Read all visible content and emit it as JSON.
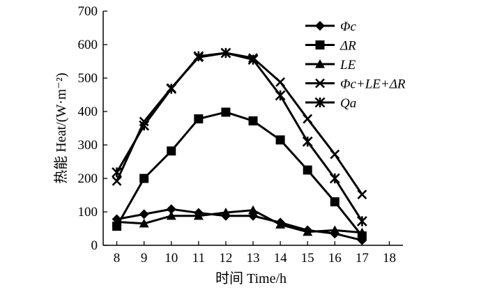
{
  "chart_data": {
    "type": "line",
    "xlabel": "时间 Time/h",
    "ylabel": "热能 Heat/(W·m⁻²)",
    "xlim": [
      7.5,
      18.5
    ],
    "ylim": [
      0,
      700
    ],
    "x_ticks": [
      8,
      9,
      10,
      11,
      12,
      13,
      14,
      15,
      16,
      17,
      18
    ],
    "y_ticks": [
      0,
      100,
      200,
      300,
      400,
      500,
      600,
      700
    ],
    "x": [
      8,
      9,
      10,
      11,
      12,
      13,
      14,
      15,
      16,
      17
    ],
    "grid": false,
    "legend_position": "top-right",
    "series": [
      {
        "name": "Φc",
        "marker": "diamond",
        "color": "#000000",
        "values": [
          78,
          93,
          108,
          97,
          88,
          88,
          68,
          45,
          35,
          15
        ]
      },
      {
        "name": "ΔR",
        "marker": "square",
        "color": "#000000",
        "values": [
          57,
          200,
          282,
          378,
          398,
          372,
          315,
          225,
          130,
          28
        ]
      },
      {
        "name": "LE",
        "marker": "triangle",
        "color": "#000000",
        "values": [
          70,
          65,
          88,
          88,
          98,
          105,
          62,
          40,
          45,
          38
        ]
      },
      {
        "name": "Φc+LE+ΔR",
        "marker": "x",
        "color": "#000000",
        "values": [
          192,
          370,
          470,
          562,
          575,
          560,
          488,
          378,
          272,
          152
        ]
      },
      {
        "name": "Qa",
        "marker": "star",
        "color": "#000000",
        "values": [
          218,
          358,
          468,
          565,
          575,
          555,
          448,
          310,
          200,
          72
        ]
      }
    ]
  }
}
